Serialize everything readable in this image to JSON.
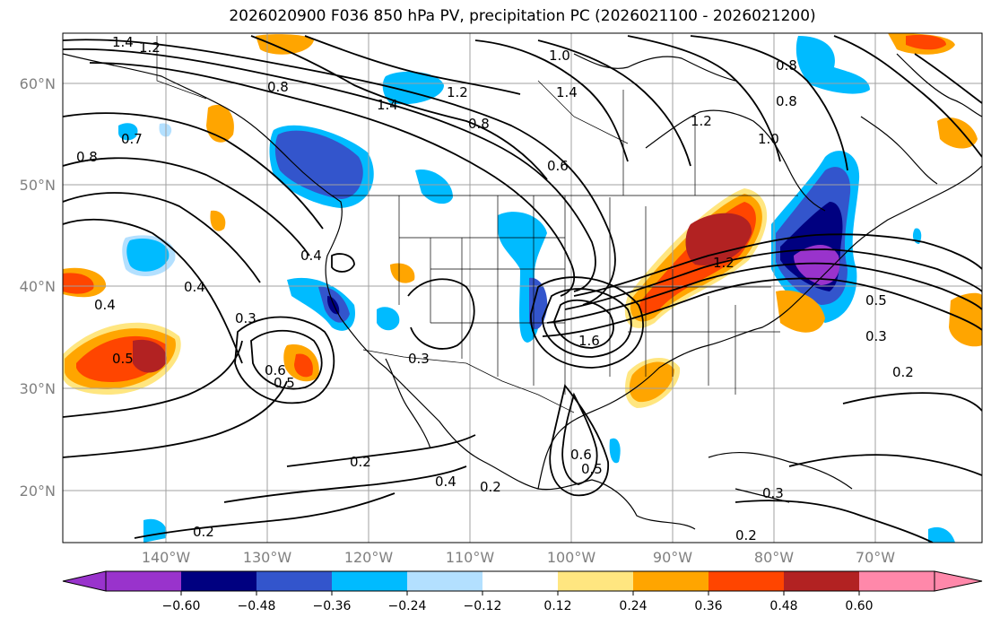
{
  "title": "2026020900 F036 850 hPa PV, precipitation PC (2026021100 - 2026021200)",
  "lat_labels": [
    "60°N",
    "50°N",
    "40°N",
    "30°N",
    "20°N"
  ],
  "lon_labels": [
    "140°W",
    "130°W",
    "120°W",
    "110°W",
    "100°W",
    "90°W",
    "80°W",
    "70°W"
  ],
  "contour_labels": [
    "1.4",
    "1.2",
    "0.8",
    "1.4",
    "1.2",
    "0.8",
    "1.0",
    "1.4",
    "0.8",
    "1.2",
    "1.0",
    "0.8",
    "0.6",
    "0.4",
    "0.4",
    "0.3",
    "0.5",
    "0.6",
    "0.5",
    "0.4",
    "0.3",
    "0.2",
    "0.4",
    "0.2",
    "0.6",
    "0.5",
    "1.6",
    "1.2",
    "0.5",
    "0.3",
    "0.2",
    "0.3",
    "0.2",
    "0.2",
    "0.8",
    "0.7"
  ],
  "colorbar": {
    "ticks": [
      "−0.60",
      "−0.48",
      "−0.36",
      "−0.24",
      "−0.12",
      "0.12",
      "0.24",
      "0.36",
      "0.48",
      "0.60"
    ],
    "colors": [
      "#9933cc",
      "#000080",
      "#3355cc",
      "#00bbff",
      "#b3e0ff",
      "#ffffff",
      "#ffe680",
      "#ffa500",
      "#ff4500",
      "#b22222",
      "#ff88aa"
    ]
  },
  "colors": {
    "neg_strong": "#000080",
    "neg_mid": "#3355cc",
    "neg_light": "#00bbff",
    "neg_faint": "#b3e0ff",
    "pos_faint": "#ffe680",
    "pos_light": "#ffa500",
    "pos_mid": "#ff4500",
    "pos_strong": "#b22222",
    "purple": "#9933cc",
    "axis_label": "#808080"
  }
}
